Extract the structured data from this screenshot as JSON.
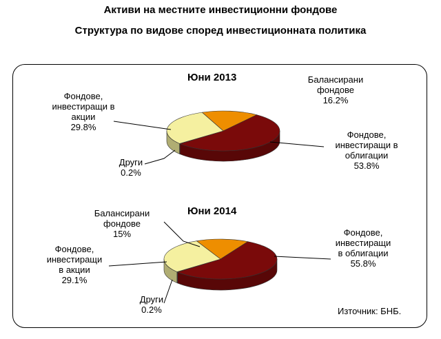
{
  "title": "Активи на местните инвестиционни фондове",
  "subtitle": "Структура по видове според инвестиционната политика",
  "source": "Източник: БНБ.",
  "colors": {
    "Балансирани фондове": "#ee8e00",
    "Фондове, инвестиращи в облигации": "#7a0a0a",
    "Фондове, инвестиращи в акции": "#f5f0a0",
    "Други": "#ffffff"
  },
  "chart_data": [
    {
      "type": "pie",
      "title": "Юни 2013",
      "slices": [
        {
          "label": "Балансирани фондове",
          "value": 16.2,
          "text": "16.2%"
        },
        {
          "label": "Фондове, инвестиращи в облигации",
          "value": 53.8,
          "text": "53.8%"
        },
        {
          "label": "Други",
          "value": 0.2,
          "text": "0.2%"
        },
        {
          "label": "Фондове, инвестиращи в акции",
          "value": 29.8,
          "text": "29.8%"
        }
      ]
    },
    {
      "type": "pie",
      "title": "Юни 2014",
      "slices": [
        {
          "label": "Балансирани фондове",
          "value": 15,
          "text": "15%"
        },
        {
          "label": "Фондове, инвестиращи в облигации",
          "value": 55.8,
          "text": "55.8%"
        },
        {
          "label": "Други",
          "value": 0.2,
          "text": "0.2%"
        },
        {
          "label": "Фондове, инвестиращи в акции",
          "value": 29.1,
          "text": "29.1%"
        }
      ]
    }
  ],
  "labels_2013": {
    "balanced": [
      "Балансирани",
      "фондове"
    ],
    "bonds": [
      "Фондове,",
      "инвестиращи в",
      "облигации"
    ],
    "stocks": [
      "Фондове,",
      "инвестиращи в",
      "акции"
    ],
    "other": [
      "Други"
    ]
  },
  "labels_2014": {
    "balanced": [
      "Балансирани",
      "фондове"
    ],
    "bonds": [
      "Фондове,",
      "инвестиращи",
      "в облигации"
    ],
    "stocks": [
      "Фондове,",
      "инвестиращи",
      "в акции"
    ],
    "other": [
      "Други"
    ]
  }
}
